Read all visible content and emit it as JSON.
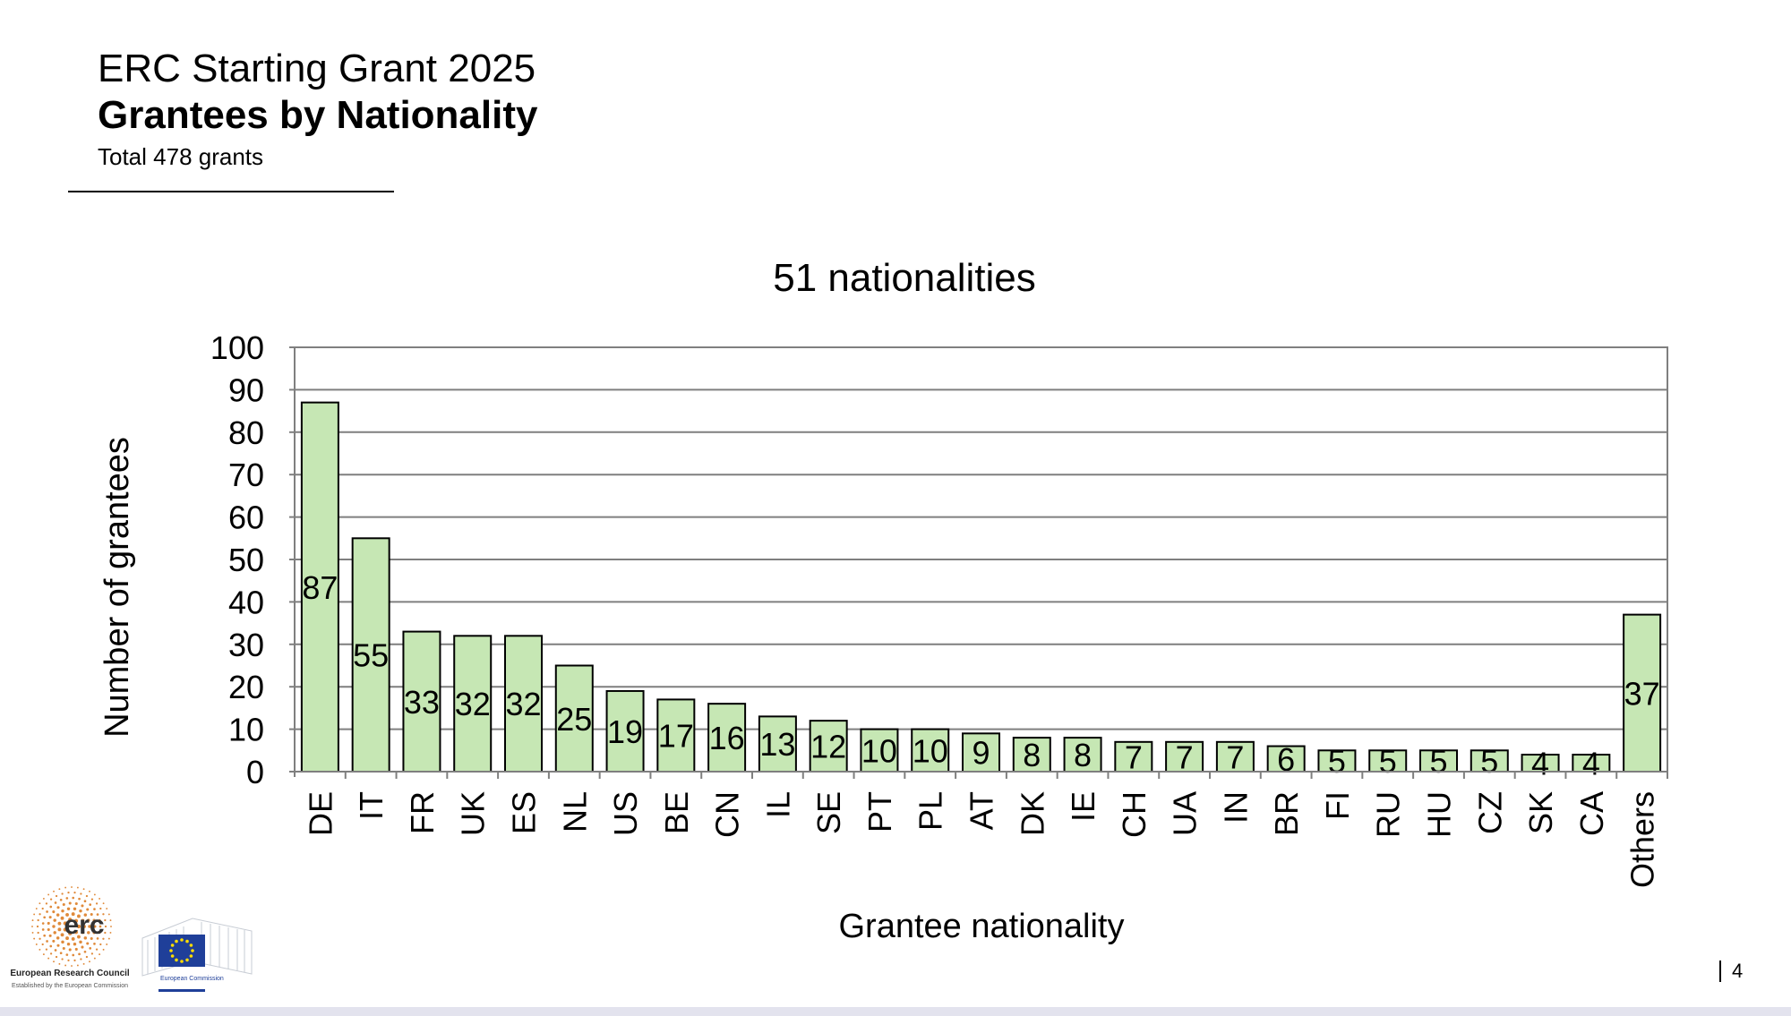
{
  "header": {
    "title": "ERC Starting Grant 2025",
    "subtitle": "Grantees by Nationality",
    "note": "Total 478 grants"
  },
  "logos": {
    "erc_main": "erc",
    "erc_name": "European Research Council",
    "erc_tagline": "Established by the European Commission",
    "ec_name": "European Commission"
  },
  "footer": {
    "page_number": "4"
  },
  "colors": {
    "bar_fill": "#c6e7b4",
    "bar_stroke": "#000000",
    "grid": "#7f7f7f",
    "eu_blue": "#1f3f99",
    "eu_star": "#ffdd00",
    "erc_dots": "#e08a3a"
  },
  "chart_data": {
    "type": "bar",
    "title": "51 nationalities",
    "xlabel": "Grantee nationality",
    "ylabel": "Number of grantees",
    "ylim": [
      0,
      100
    ],
    "yticks": [
      0,
      10,
      20,
      30,
      40,
      50,
      60,
      70,
      80,
      90,
      100
    ],
    "grid": true,
    "categories": [
      "DE",
      "IT",
      "FR",
      "UK",
      "ES",
      "NL",
      "US",
      "BE",
      "CN",
      "IL",
      "SE",
      "PT",
      "PL",
      "AT",
      "DK",
      "IE",
      "CH",
      "UA",
      "IN",
      "BR",
      "FI",
      "RU",
      "HU",
      "CZ",
      "SK",
      "CA",
      "Others"
    ],
    "values": [
      87,
      55,
      33,
      32,
      32,
      25,
      19,
      17,
      16,
      13,
      12,
      10,
      10,
      9,
      8,
      8,
      7,
      7,
      7,
      6,
      5,
      5,
      5,
      5,
      4,
      4,
      37
    ]
  }
}
